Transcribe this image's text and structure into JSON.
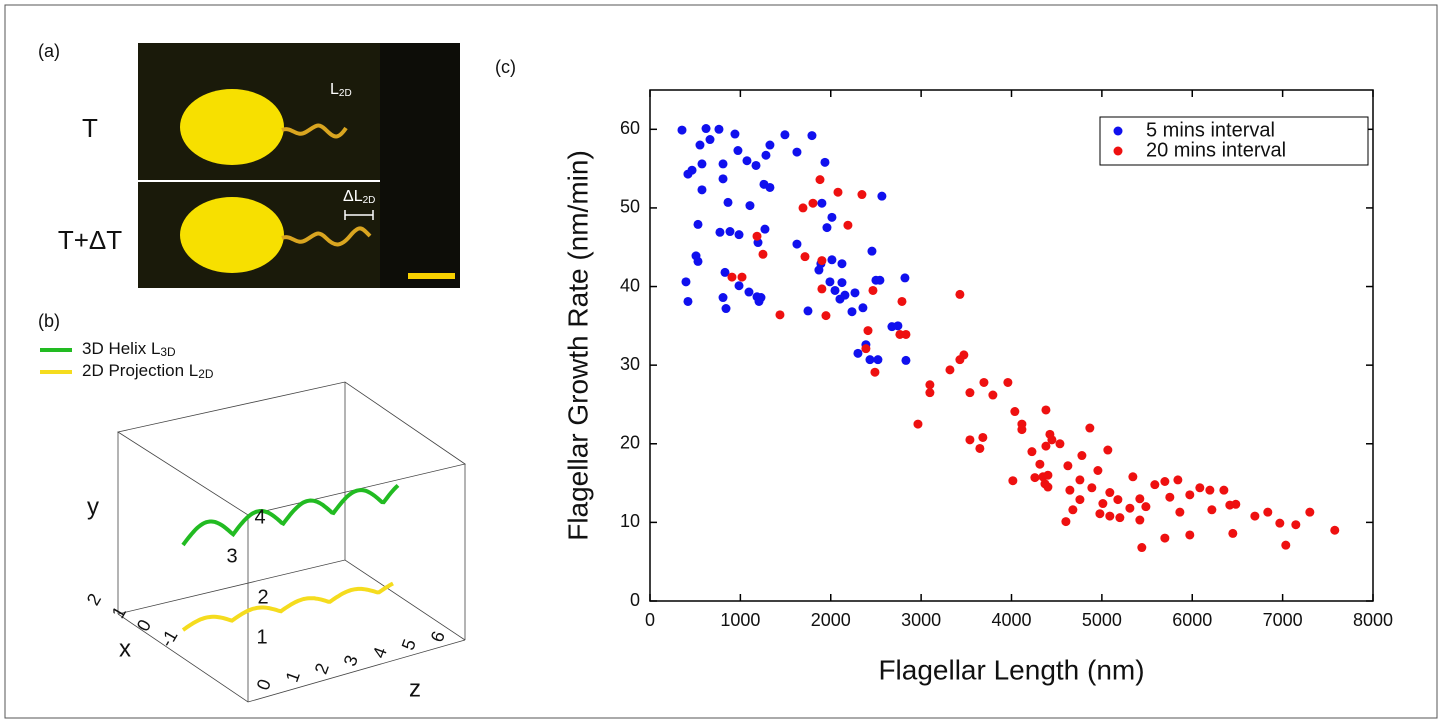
{
  "panel_a": {
    "label": "(a)",
    "row_labels": [
      "T",
      "T+ΔT"
    ],
    "length_label": {
      "text": "L",
      "sub": "2D"
    },
    "delta_label": {
      "text": "ΔL",
      "sub": "2D"
    }
  },
  "panel_b": {
    "label": "(b)",
    "legend": [
      {
        "text": "3D Helix L",
        "sub": "3D",
        "color": "#22bb22"
      },
      {
        "text": "2D Projection L",
        "sub": "2D",
        "color": "#f5dc1e"
      }
    ],
    "y_label": "y",
    "x_label": "x",
    "z_label": "z",
    "y_ticks": [
      4,
      3,
      2,
      1
    ],
    "x_ticks": [
      2,
      1,
      0,
      -1
    ],
    "z_ticks": [
      0,
      1,
      2,
      3,
      4,
      5,
      6
    ]
  },
  "chart_data": {
    "type": "scatter",
    "panel_label": "(c)",
    "x_label": "Flagellar Length (nm)",
    "y_label": "Flagellar Growth Rate (nm/min)",
    "xlim": [
      0,
      8000
    ],
    "ylim": [
      0,
      65
    ],
    "xticks": [
      0,
      1000,
      2000,
      3000,
      4000,
      5000,
      6000,
      7000,
      8000
    ],
    "yticks": [
      0,
      10,
      20,
      30,
      40,
      50,
      60
    ],
    "legend": "upper right",
    "series": [
      {
        "name": "5 mins interval",
        "color": "#1010ee",
        "x": [
          354,
          620,
          763,
          940,
          664,
          973,
          553,
          1327,
          1493,
          1792,
          1283,
          1073,
          1173,
          1626,
          575,
          465,
          420,
          808,
          808,
          1936,
          1261,
          1327,
          1106,
          863,
          575,
          531,
          774,
          885,
          985,
          1195,
          1272,
          1626,
          1902,
          2013,
          1958,
          1891,
          2124,
          2013,
          1869,
          2456,
          2566,
          398,
          420,
          509,
          531,
          830,
          808,
          841,
          985,
          1095,
          1184,
          1206,
          1228,
          1748,
          1991,
          2124,
          2047,
          2157,
          2268,
          2102,
          2500,
          2544,
          2821,
          2235,
          2356,
          2677,
          2743,
          2301,
          2389,
          2434,
          2522,
          2832
        ],
        "values": [
          59.9,
          60.1,
          60,
          59.4,
          58.7,
          57.3,
          58,
          58,
          59.3,
          59.2,
          56.7,
          56,
          55.4,
          57.1,
          55.6,
          54.8,
          54.3,
          55.6,
          53.7,
          55.8,
          53,
          52.6,
          50.3,
          50.7,
          52.3,
          47.9,
          46.9,
          47,
          46.6,
          45.6,
          47.3,
          45.4,
          50.6,
          48.8,
          47.5,
          42.9,
          42.9,
          43.4,
          42.1,
          44.5,
          51.5,
          40.6,
          38.1,
          43.9,
          43.2,
          41.8,
          38.6,
          37.2,
          40.1,
          39.3,
          38.7,
          38.1,
          38.6,
          36.9,
          40.6,
          40.5,
          39.5,
          38.9,
          39.2,
          38.4,
          40.8,
          40.8,
          41.1,
          36.8,
          37.3,
          34.9,
          35,
          31.5,
          32.6,
          30.7,
          30.7,
          30.6
        ]
      },
      {
        "name": "20 mins interval",
        "color": "#ee1010",
        "x": [
          1881,
          2080,
          2190,
          2345,
          1693,
          1803,
          1184,
          1250,
          907,
          1018,
          1715,
          1902,
          1902,
          2467,
          2788,
          1438,
          1947,
          2412,
          2389,
          2489,
          2832,
          2765,
          3097,
          3097,
          2965,
          3319,
          3429,
          3473,
          3429,
          3540,
          3695,
          3794,
          3960,
          4037,
          4115,
          4115,
          3540,
          3650,
          3683,
          4226,
          4015,
          4381,
          4425,
          4447,
          4381,
          4536,
          4259,
          4348,
          4370,
          4403,
          4403,
          4314,
          4624,
          4757,
          4889,
          4867,
          4779,
          5066,
          4956,
          4757,
          4646,
          4679,
          4602,
          5088,
          5177,
          5011,
          4978,
          5088,
          5199,
          5310,
          5343,
          5420,
          5420,
          5442,
          5487,
          5586,
          5697,
          5841,
          5752,
          5973,
          6084,
          6195,
          5863,
          5697,
          5973,
          6217,
          6350,
          6416,
          6482,
          6449,
          6693,
          6836,
          6969,
          7146,
          7301,
          7035,
          7577
        ],
        "values": [
          53.6,
          52,
          47.8,
          51.7,
          50,
          50.6,
          46.4,
          44.1,
          41.2,
          41.2,
          43.8,
          43.3,
          39.7,
          39.5,
          38.1,
          36.4,
          36.3,
          34.4,
          32.1,
          29.1,
          33.9,
          33.9,
          27.5,
          26.5,
          22.5,
          29.4,
          30.7,
          31.3,
          39,
          26.5,
          27.8,
          26.2,
          27.8,
          24.1,
          22.5,
          21.8,
          20.5,
          19.4,
          20.8,
          19,
          15.3,
          24.3,
          21.2,
          20.5,
          19.7,
          20,
          15.7,
          15.8,
          14.9,
          14.5,
          16,
          17.4,
          17.2,
          15.4,
          14.4,
          22,
          18.5,
          19.2,
          16.6,
          12.9,
          14.1,
          11.6,
          10.1,
          13.8,
          12.9,
          12.4,
          11.1,
          10.8,
          10.6,
          11.8,
          15.8,
          13,
          10.3,
          6.8,
          12,
          14.8,
          15.2,
          15.4,
          13.2,
          13.5,
          14.4,
          14.1,
          11.3,
          8,
          8.4,
          11.6,
          14.1,
          12.2,
          12.3,
          8.6,
          10.8,
          11.3,
          9.9,
          9.7,
          11.3,
          7.1,
          9
        ]
      }
    ]
  }
}
